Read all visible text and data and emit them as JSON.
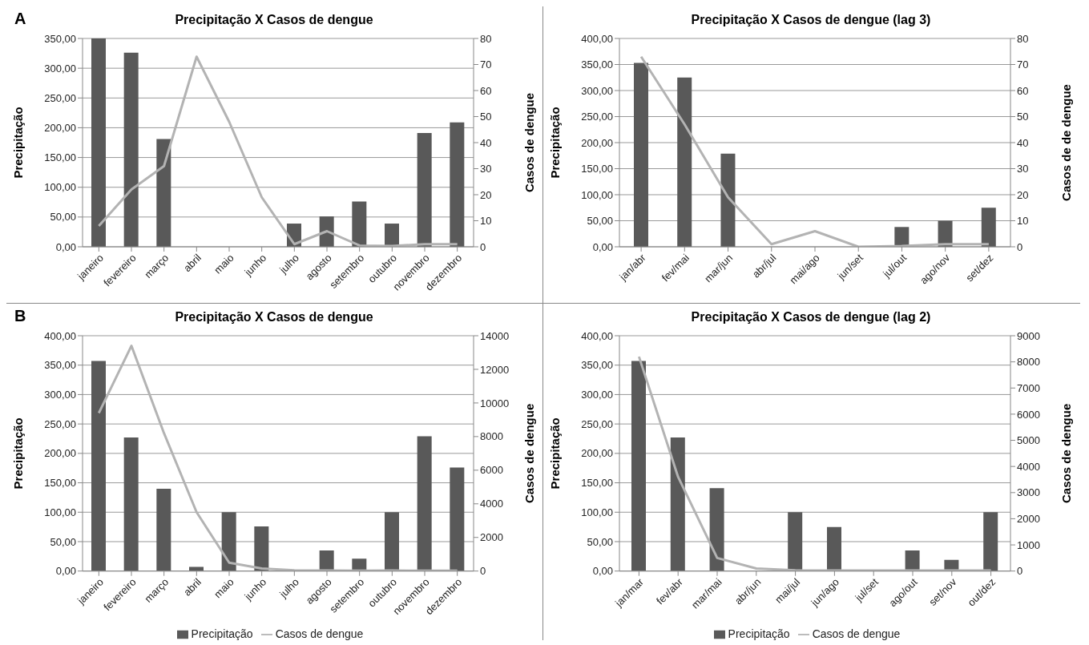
{
  "chart_data": [
    {
      "type": "bar",
      "title": "Precipitação X Casos de dengue",
      "annotations": [
        "A"
      ],
      "ylabel": "Precipitação",
      "y2label": "Casos de dengue",
      "categories": [
        "janeiro",
        "fevereiro",
        "março",
        "abril",
        "maio",
        "junho",
        "julho",
        "agosto",
        "setembro",
        "outubro",
        "novembro",
        "dezembro"
      ],
      "series": [
        {
          "color": "#595959",
          "values": [
            350,
            326,
            181,
            0,
            0,
            0,
            39,
            51,
            76,
            39,
            191,
            209
          ]
        },
        {
          "type": "line",
          "axis": "y2",
          "color": "#b3b3b3",
          "values": [
            8,
            22,
            31,
            73,
            48,
            19,
            1,
            6,
            0.5,
            0.3,
            1,
            1
          ]
        }
      ],
      "ylim": [
        0,
        350
      ],
      "yticks": [
        {
          "value": 0,
          "label": "0,00"
        },
        {
          "value": 50,
          "label": "50,00"
        },
        {
          "value": 100,
          "label": "100,00"
        },
        {
          "value": 150,
          "label": "150,00"
        },
        {
          "value": 200,
          "label": "200,00"
        },
        {
          "value": 250,
          "label": "250,00"
        },
        {
          "value": 300,
          "label": "300,00"
        },
        {
          "value": 350,
          "label": "350,00"
        }
      ],
      "y2lim": [
        0,
        80
      ],
      "y2ticks": [
        0,
        10,
        20,
        30,
        40,
        50,
        60,
        70,
        80
      ],
      "grid": "y",
      "legend": false
    },
    {
      "type": "bar",
      "title": "Precipitação X Casos de dengue (lag 3)",
      "ylabel": "Precipitação",
      "y2label": "Casos de de dengue",
      "categories": [
        "jan/abr",
        "fev/mai",
        "mar/jun",
        "abr/jul",
        "mai/ago",
        "jun/set",
        "jul/out",
        "ago/nov",
        "set/dez"
      ],
      "series": [
        {
          "color": "#595959",
          "values": [
            353,
            325,
            179,
            0,
            0,
            0,
            38,
            50,
            75
          ]
        },
        {
          "type": "line",
          "axis": "y2",
          "color": "#b3b3b3",
          "values": [
            73,
            47,
            19,
            1,
            6,
            0,
            0.3,
            1,
            1
          ]
        }
      ],
      "ylim": [
        0,
        400
      ],
      "yticks": [
        {
          "value": 0,
          "label": "0,00"
        },
        {
          "value": 50,
          "label": "50,00"
        },
        {
          "value": 100,
          "label": "100,00"
        },
        {
          "value": 150,
          "label": "150,00"
        },
        {
          "value": 200,
          "label": "200,00"
        },
        {
          "value": 250,
          "label": "250,00"
        },
        {
          "value": 300,
          "label": "300,00"
        },
        {
          "value": 350,
          "label": "350,00"
        },
        {
          "value": 400,
          "label": "400,00"
        }
      ],
      "y2lim": [
        0,
        80
      ],
      "y2ticks": [
        0,
        10,
        20,
        30,
        40,
        50,
        60,
        70,
        80
      ],
      "grid": "y",
      "legend": false
    },
    {
      "type": "bar",
      "title": "Precipitação X Casos de dengue",
      "annotations": [
        "B"
      ],
      "ylabel": "Precipitação",
      "y2label": "Casos de dengue",
      "categories": [
        "janeiro",
        "fevereiro",
        "março",
        "abril",
        "maio",
        "junho",
        "julho",
        "agosto",
        "setembro",
        "outubro",
        "novembro",
        "dezembro"
      ],
      "series": [
        {
          "name": "Precipitação",
          "color": "#595959",
          "values": [
            357,
            227,
            140,
            7,
            100,
            76,
            0,
            35,
            21,
            100,
            229,
            176
          ]
        },
        {
          "type": "line",
          "name": "Casos de dengue",
          "axis": "y2",
          "color": "#b3b3b3",
          "values": [
            9400,
            13400,
            8200,
            3500,
            500,
            150,
            50,
            30,
            20,
            30,
            20,
            20
          ]
        }
      ],
      "ylim": [
        0,
        400
      ],
      "yticks": [
        {
          "value": 0,
          "label": "0,00"
        },
        {
          "value": 50,
          "label": "50,00"
        },
        {
          "value": 100,
          "label": "100,00"
        },
        {
          "value": 150,
          "label": "150,00"
        },
        {
          "value": 200,
          "label": "200,00"
        },
        {
          "value": 250,
          "label": "250,00"
        },
        {
          "value": 300,
          "label": "300,00"
        },
        {
          "value": 350,
          "label": "350,00"
        },
        {
          "value": 400,
          "label": "400,00"
        }
      ],
      "y2lim": [
        0,
        14000
      ],
      "y2ticks": [
        0,
        2000,
        4000,
        6000,
        8000,
        10000,
        12000,
        14000
      ],
      "grid": "y",
      "legend": "bottom"
    },
    {
      "type": "bar",
      "title": "Precipitação X Casos de dengue (lag 2)",
      "ylabel": "Precipitação",
      "y2label": "Casos de dengue",
      "categories": [
        "jan/mar",
        "fev/abr",
        "mar/mai",
        "abr/jun",
        "mai/jul",
        "jun/ago",
        "jul/set",
        "ago/out",
        "set/nov",
        "out/dez"
      ],
      "series": [
        {
          "name": "Precipitação",
          "color": "#595959",
          "values": [
            357,
            227,
            141,
            null,
            100,
            75,
            0,
            35,
            19,
            100
          ]
        },
        {
          "type": "line",
          "name": "Casos de dengue",
          "axis": "y2",
          "color": "#b3b3b3",
          "values": [
            8200,
            3600,
            500,
            100,
            30,
            20,
            20,
            20,
            20,
            20
          ]
        }
      ],
      "ylim": [
        0,
        400
      ],
      "yticks": [
        {
          "value": 0,
          "label": "0,00"
        },
        {
          "value": 50,
          "label": "50,00"
        },
        {
          "value": 100,
          "label": "100,00"
        },
        {
          "value": 150,
          "label": "150,00"
        },
        {
          "value": 200,
          "label": "200,00"
        },
        {
          "value": 250,
          "label": "250,00"
        },
        {
          "value": 300,
          "label": "300,00"
        },
        {
          "value": 350,
          "label": "350,00"
        },
        {
          "value": 400,
          "label": "400,00"
        }
      ],
      "y2lim": [
        0,
        9000
      ],
      "y2ticks": [
        0,
        1000,
        2000,
        3000,
        4000,
        5000,
        6000,
        7000,
        8000,
        9000
      ],
      "grid": "y",
      "legend": "bottom"
    }
  ]
}
